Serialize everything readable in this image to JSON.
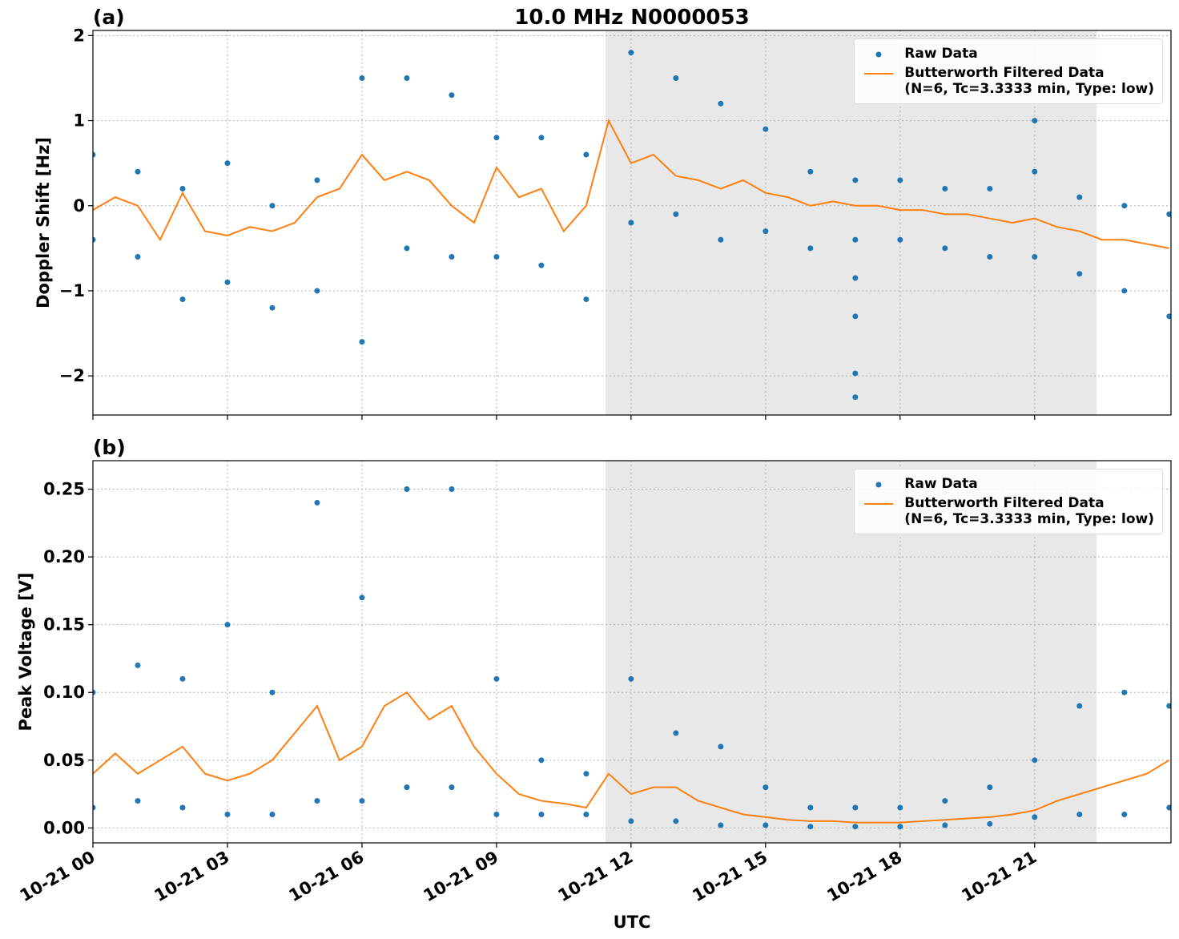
{
  "chart_data": [
    {
      "type": "line",
      "panel_label": "(a)",
      "title": "10.0 MHz N0000053",
      "ylabel": "Doppler Shift [Hz]",
      "xlim": [
        0,
        24.04
      ],
      "ylim": [
        -2.46,
        2.06
      ],
      "xticks": [
        0,
        3,
        6,
        9,
        12,
        15,
        18,
        21
      ],
      "xticklabels_visible": false,
      "yticks": [
        {
          "value": -2,
          "label": "−2"
        },
        {
          "value": -1,
          "label": "−1"
        },
        0,
        1,
        2
      ],
      "grid": true,
      "shaded_span": [
        11.43,
        22.38
      ],
      "legend": "upper right",
      "series": [
        {
          "name": "Raw Data",
          "color": "#1f77b4",
          "style": "markers",
          "x": [
            0,
            1,
            2,
            3,
            4,
            5,
            6,
            7,
            8,
            9,
            10,
            11,
            12,
            13,
            14,
            15,
            16,
            17,
            18,
            19,
            20,
            21,
            22,
            23,
            24,
            0,
            1,
            2,
            3,
            4,
            5,
            6,
            7,
            8,
            9,
            10,
            11,
            12,
            13,
            14,
            15,
            16,
            17,
            18,
            19,
            20,
            21,
            22,
            23,
            24,
            17,
            17,
            17,
            17,
            21
          ],
          "values": [
            0.6,
            0.4,
            0.2,
            0.5,
            0.0,
            0.3,
            1.5,
            1.5,
            1.3,
            0.8,
            0.8,
            0.6,
            1.8,
            1.5,
            1.2,
            0.9,
            0.4,
            0.3,
            0.3,
            0.2,
            0.2,
            0.4,
            0.1,
            0.0,
            -0.1,
            -0.4,
            -0.6,
            -1.1,
            -0.9,
            -1.2,
            -1.0,
            -1.6,
            -0.5,
            -0.6,
            -0.6,
            -0.7,
            -1.1,
            -0.2,
            -0.1,
            -0.4,
            -0.3,
            -0.5,
            -0.4,
            -0.4,
            -0.5,
            -0.6,
            -0.6,
            -0.8,
            -1.0,
            -1.3,
            -0.85,
            -1.3,
            -1.97,
            -2.25,
            1.0
          ]
        },
        {
          "name": "Butterworth Filtered Data\n(N=6, Tc=3.3333 min, Type: low)",
          "color": "#ff7f0e",
          "style": "line",
          "x": [
            0,
            0.5,
            1,
            1.5,
            2,
            2.5,
            3,
            3.5,
            4,
            4.5,
            5,
            5.5,
            6,
            6.5,
            7,
            7.5,
            8,
            8.5,
            9,
            9.5,
            10,
            10.5,
            11,
            11.5,
            12,
            12.5,
            13,
            13.5,
            14,
            14.5,
            15,
            15.5,
            16,
            16.5,
            17,
            17.5,
            18,
            18.5,
            19,
            19.5,
            20,
            20.5,
            21,
            21.5,
            22,
            22.5,
            23,
            23.5,
            24
          ],
          "values": [
            -0.05,
            0.1,
            0.0,
            -0.4,
            0.15,
            -0.3,
            -0.35,
            -0.25,
            -0.3,
            -0.2,
            0.1,
            0.2,
            0.6,
            0.3,
            0.4,
            0.3,
            0.0,
            -0.2,
            0.45,
            0.1,
            0.2,
            -0.3,
            0.0,
            1.0,
            0.5,
            0.6,
            0.35,
            0.3,
            0.2,
            0.3,
            0.15,
            0.1,
            0.0,
            0.05,
            0.0,
            0.0,
            -0.05,
            -0.05,
            -0.1,
            -0.1,
            -0.15,
            -0.2,
            -0.15,
            -0.25,
            -0.3,
            -0.4,
            -0.4,
            -0.45,
            -0.5
          ]
        }
      ]
    },
    {
      "type": "line",
      "panel_label": "(b)",
      "ylabel": "Peak Voltage [V]",
      "xlabel": "UTC",
      "xlim": [
        0,
        24.04
      ],
      "ylim": [
        -0.011,
        0.271
      ],
      "xticks": [
        {
          "value": 0,
          "label": "10-21 00"
        },
        {
          "value": 3,
          "label": "10-21 03"
        },
        {
          "value": 6,
          "label": "10-21 06"
        },
        {
          "value": 9,
          "label": "10-21 09"
        },
        {
          "value": 12,
          "label": "10-21 12"
        },
        {
          "value": 15,
          "label": "10-21 15"
        },
        {
          "value": 18,
          "label": "10-21 18"
        },
        {
          "value": 21,
          "label": "10-21 21"
        }
      ],
      "yticks": [
        {
          "value": 0,
          "label": "0.00"
        },
        {
          "value": 0.05,
          "label": "0.05"
        },
        {
          "value": 0.1,
          "label": "0.10"
        },
        {
          "value": 0.15,
          "label": "0.15"
        },
        {
          "value": 0.2,
          "label": "0.20"
        },
        {
          "value": 0.25,
          "label": "0.25"
        }
      ],
      "grid": true,
      "shaded_span": [
        11.43,
        22.38
      ],
      "legend": "upper right",
      "series": [
        {
          "name": "Raw Data",
          "color": "#1f77b4",
          "style": "markers",
          "x": [
            0,
            1,
            2,
            3,
            4,
            5,
            6,
            7,
            8,
            9,
            10,
            11,
            12,
            13,
            14,
            15,
            16,
            17,
            18,
            19,
            20,
            21,
            22,
            23,
            24,
            0,
            1,
            2,
            3,
            4,
            5,
            6,
            7,
            8,
            9,
            10,
            11,
            12,
            13,
            14,
            15,
            16,
            17,
            18,
            19,
            20,
            21,
            22,
            23,
            24
          ],
          "values": [
            0.1,
            0.12,
            0.11,
            0.15,
            0.1,
            0.24,
            0.17,
            0.25,
            0.25,
            0.11,
            0.05,
            0.04,
            0.11,
            0.07,
            0.06,
            0.03,
            0.015,
            0.015,
            0.015,
            0.02,
            0.03,
            0.05,
            0.09,
            0.1,
            0.09,
            0.015,
            0.02,
            0.015,
            0.01,
            0.01,
            0.02,
            0.02,
            0.03,
            0.03,
            0.01,
            0.01,
            0.01,
            0.005,
            0.005,
            0.002,
            0.002,
            0.001,
            0.001,
            0.001,
            0.002,
            0.003,
            0.008,
            0.01,
            0.01,
            0.015
          ]
        },
        {
          "name": "Butterworth Filtered Data\n(N=6, Tc=3.3333 min, Type: low)",
          "color": "#ff7f0e",
          "style": "line",
          "x": [
            0,
            0.5,
            1,
            1.5,
            2,
            2.5,
            3,
            3.5,
            4,
            4.5,
            5,
            5.5,
            6,
            6.5,
            7,
            7.5,
            8,
            8.5,
            9,
            9.5,
            10,
            10.5,
            11,
            11.5,
            12,
            12.5,
            13,
            13.5,
            14,
            14.5,
            15,
            15.5,
            16,
            16.5,
            17,
            17.5,
            18,
            18.5,
            19,
            19.5,
            20,
            20.5,
            21,
            21.5,
            22,
            22.5,
            23,
            23.5,
            24
          ],
          "values": [
            0.04,
            0.055,
            0.04,
            0.05,
            0.06,
            0.04,
            0.035,
            0.04,
            0.05,
            0.07,
            0.09,
            0.05,
            0.06,
            0.09,
            0.1,
            0.08,
            0.09,
            0.06,
            0.04,
            0.025,
            0.02,
            0.018,
            0.015,
            0.04,
            0.025,
            0.03,
            0.03,
            0.02,
            0.015,
            0.01,
            0.008,
            0.006,
            0.005,
            0.005,
            0.004,
            0.004,
            0.004,
            0.005,
            0.006,
            0.007,
            0.008,
            0.01,
            0.013,
            0.02,
            0.025,
            0.03,
            0.035,
            0.04,
            0.05
          ]
        }
      ]
    }
  ]
}
